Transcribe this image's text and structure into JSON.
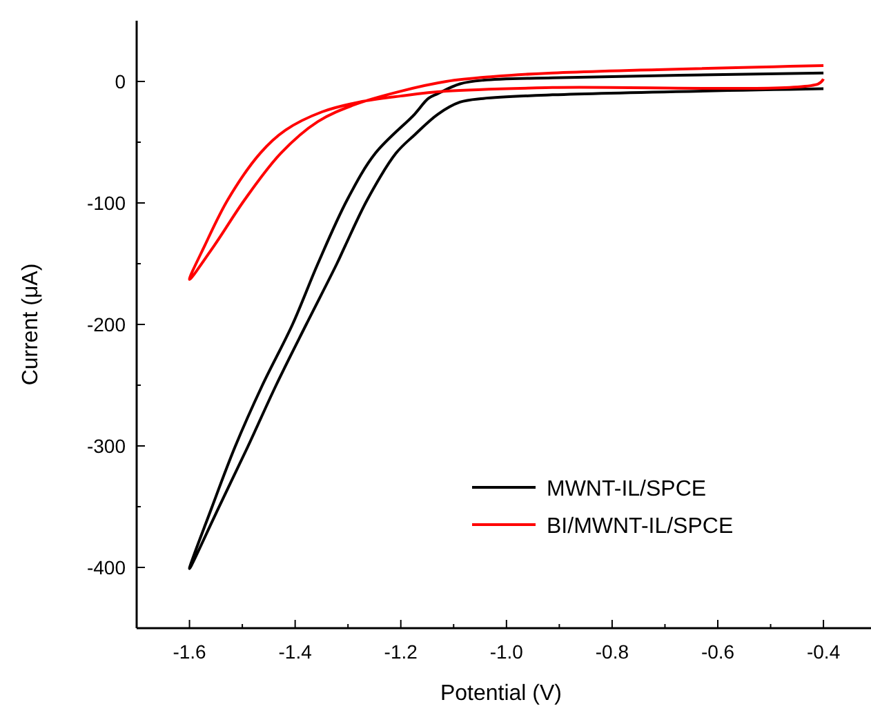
{
  "chart_data": {
    "type": "line",
    "xlabel": "Potential (V)",
    "ylabel": "Current (μA)",
    "xlim": [
      -1.7,
      -0.31
    ],
    "ylim": [
      -450,
      50
    ],
    "xticks": [
      -1.6,
      {
        "value": -1.5,
        "label": null
      },
      -1.4,
      {
        "value": -1.3,
        "label": null
      },
      -1.2,
      {
        "value": -1.1,
        "label": null
      },
      {
        "value": -1.0,
        "label": "-1.0"
      },
      {
        "value": -0.9,
        "label": null
      },
      -0.8,
      {
        "value": -0.7,
        "label": null
      },
      -0.6,
      {
        "value": -0.5,
        "label": null
      },
      -0.4
    ],
    "yticks": [
      -400,
      {
        "value": -350,
        "label": null
      },
      -300,
      {
        "value": -250,
        "label": null
      },
      -200,
      {
        "value": -150,
        "label": null
      },
      -100,
      {
        "value": -50,
        "label": null
      },
      0
    ],
    "grid": false,
    "legend": "bottom right",
    "marker": "none",
    "line_style": "solid",
    "series": [
      {
        "name": "MWNT-IL/SPCE",
        "color": "#000000",
        "x": [
          -0.4,
          -0.913,
          -1.044,
          -1.088,
          -1.13,
          -1.174,
          -1.209,
          -1.263,
          -1.305,
          -1.321,
          -1.379,
          -1.436,
          -1.49,
          -1.545,
          -1.6,
          -1.558,
          -1.514,
          -1.462,
          -1.405,
          -1.357,
          -1.301,
          -1.248,
          -1.174,
          -1.148,
          -1.13,
          -1.088,
          -1.044,
          -0.913,
          -0.4
        ],
        "values": [
          -6,
          -11,
          -14,
          -17,
          -27,
          -44,
          -59,
          -97,
          -135,
          -150,
          -200,
          -250,
          -301,
          -351,
          -401,
          -351,
          -301,
          -250,
          -200,
          -150,
          -97,
          -59,
          -27,
          -14,
          -10,
          -2,
          1,
          3,
          7
        ]
      },
      {
        "name": "BI/MWNT-IL/SPCE",
        "color": "#ff0000",
        "x": [
          -0.4,
          -0.41,
          -0.913,
          -1.114,
          -1.2,
          -1.279,
          -1.349,
          -1.418,
          -1.466,
          -1.527,
          -1.571,
          -1.6,
          -1.553,
          -1.495,
          -1.427,
          -1.357,
          -1.287,
          -1.2,
          -1.114,
          -1.026,
          -0.913,
          -0.4
        ],
        "values": [
          2,
          -2,
          -5,
          -8,
          -12,
          -17,
          -25,
          -40,
          -59,
          -97,
          -135,
          -163,
          -135,
          -97,
          -59,
          -33,
          -19,
          -8,
          0,
          4,
          7,
          13
        ]
      }
    ]
  }
}
